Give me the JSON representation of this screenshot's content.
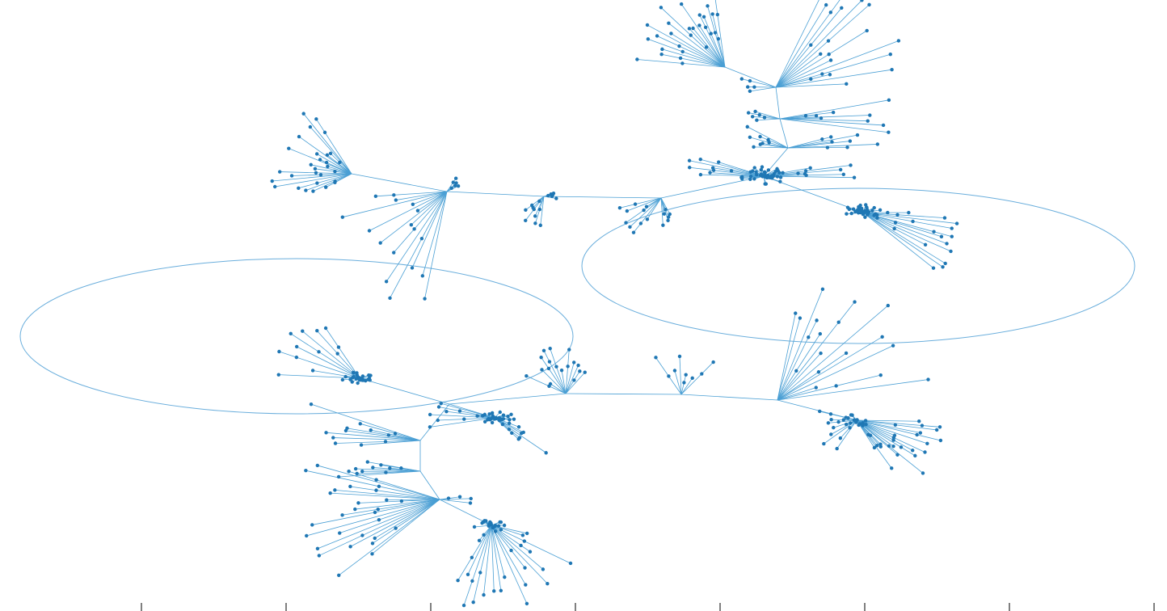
{
  "diagram": {
    "type": "network-graph",
    "colors": {
      "node": "#1f77b4",
      "edge": "#4a9fd4",
      "loop": "#6aaedc",
      "background": "#ffffff"
    },
    "bottom_axis": {
      "visible": true,
      "tick_count": 8,
      "tick_labels": []
    }
  }
}
